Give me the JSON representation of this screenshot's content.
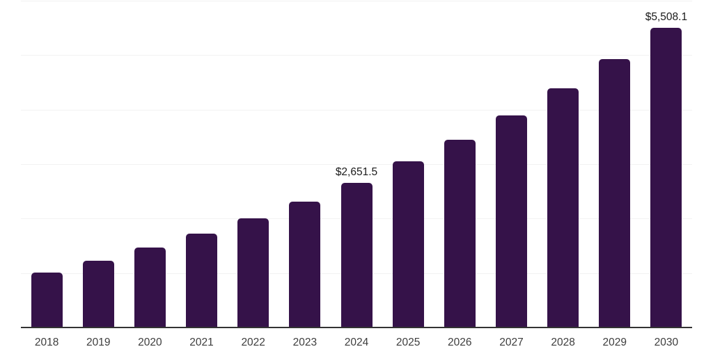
{
  "chart": {
    "background_color": "#ffffff",
    "bar_color": "#351249",
    "axis_line_color": "#333333",
    "gridline_color": "#f2f2f2",
    "data_label_color": "#1a1a1a",
    "tick_label_color": "#3d3d3d"
  },
  "chart_data": {
    "type": "bar",
    "title": "",
    "xlabel": "",
    "ylabel": "",
    "categories": [
      "2018",
      "2019",
      "2020",
      "2021",
      "2022",
      "2023",
      "2024",
      "2025",
      "2026",
      "2027",
      "2028",
      "2029",
      "2030"
    ],
    "values": [
      1005,
      1225,
      1465,
      1725,
      2000,
      2305,
      2651.5,
      3045,
      3445,
      3890,
      4395,
      4925,
      5508.1
    ],
    "point_labels": [
      "",
      "",
      "",
      "",
      "",
      "",
      "$2,651.5",
      "",
      "",
      "",
      "",
      "",
      "$5,508.1"
    ],
    "ylim": [
      0,
      6000
    ],
    "grid_step": 1000,
    "grid": true,
    "legend": false,
    "y_axis_tick_labels_visible": false,
    "labeled_points": [
      {
        "category": "2024",
        "label": "$2,651.5",
        "value": 2651.5
      },
      {
        "category": "2030",
        "label": "$5,508.1",
        "value": 5508.1
      }
    ]
  }
}
